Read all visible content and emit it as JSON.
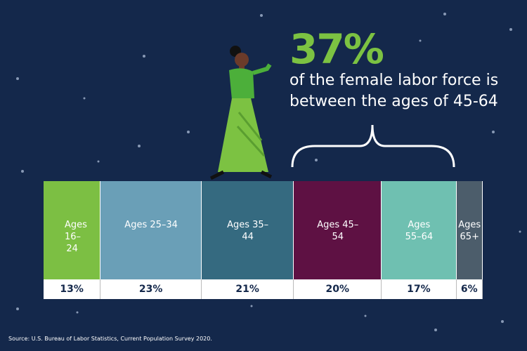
{
  "chart_data": {
    "type": "stacked-bar",
    "headline": "37%",
    "annotation": "of the female labor force is between the ages of 45-64",
    "categories": [
      "Ages 16–24",
      "Ages 25–34",
      "Ages 35–44",
      "Ages 45–54",
      "Ages 55–64",
      "Ages 65+"
    ],
    "values": [
      13,
      23,
      21,
      20,
      17,
      6
    ],
    "value_labels": [
      "13%",
      "23%",
      "21%",
      "20%",
      "17%",
      "6%"
    ],
    "colors": [
      "#7cbf43",
      "#6a9fb7",
      "#356a80",
      "#5e1143",
      "#6fc0b1",
      "#4c5d6b"
    ],
    "source": "Source: U.S. Bureau of Labor Statistics, Current Population Survey 2020."
  }
}
